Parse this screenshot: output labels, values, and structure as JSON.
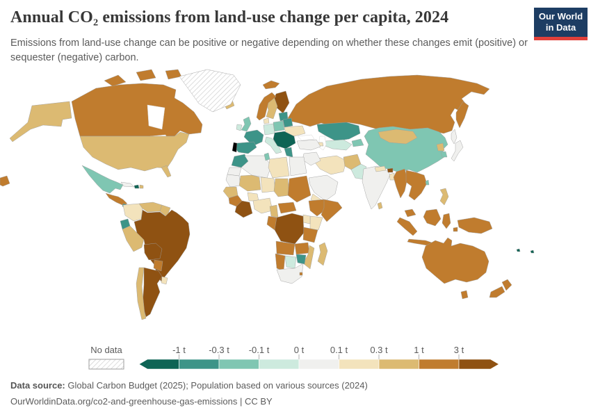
{
  "header": {
    "title": "Annual CO₂ emissions from land-use change per capita, 2024",
    "subtitle": "Emissions from land-use change can be positive or negative depending on whether these changes emit (positive) or sequester (negative) carbon.",
    "logo": {
      "line1": "Our World",
      "line2": "in Data",
      "bg_color": "#1d3d63",
      "accent_color": "#e0403a"
    }
  },
  "chart_data": {
    "type": "choropleth_map",
    "title": "Annual CO₂ emissions from land-use change per capita, 2024",
    "year": 2024,
    "unit": "tonnes of CO₂ per person",
    "legend": {
      "no_data_label": "No data",
      "tick_labels": [
        "-1 t",
        "-0.3 t",
        "-0.1 t",
        "0 t",
        "0.1 t",
        "0.3 t",
        "1 t",
        "3 t"
      ],
      "bin_colors": [
        "#0e6455",
        "#3d9488",
        "#7fc6b2",
        "#cdeade",
        "#f0f0ee",
        "#f3e3bc",
        "#dcba72",
        "#c07c2e",
        "#8f5212"
      ],
      "bins": [
        "less than -1 t",
        "-1 t to -0.3 t",
        "-0.3 t to -0.1 t",
        "-0.1 t to 0 t",
        "0 t to 0.1 t",
        "0.1 t to 0.3 t",
        "0.3 t to 1 t",
        "1 t to 3 t",
        "more than 3 t"
      ],
      "note": "region values below are 1-based indexes into bins/bin_colors; 0 = no data",
      "hatch_color": "#cfcfcf"
    },
    "regions": {
      "greenland": 0,
      "balkans": 1,
      "haiti": 1,
      "georgia": 1,
      "fiji": 1,
      "france": 2,
      "spain": 2,
      "greece": 2,
      "morocco": 2,
      "kazakhstan": 2,
      "belarus": 2,
      "baltics": 2,
      "ecuador": 2,
      "zimbabwe": 2,
      "costa-rica-panama": 2,
      "mexico": 3,
      "china": 3,
      "united-kingdom": 3,
      "poland": 3,
      "tunisia": 3,
      "south-korea": 3,
      "kyrgyzstan-tajikistan": 3,
      "taiwan": 3,
      "ireland": 4,
      "germany": 4,
      "italy": 4,
      "pakistan": 4,
      "uzbekistan-turkmenistan": 4,
      "botswana": 4,
      "india": 5,
      "turkey": 5,
      "japan": 5,
      "saudi-arabia": 5,
      "iraq-syria": 5,
      "algeria": 5,
      "egypt": 5,
      "western-sahara": 5,
      "mauritania": 5,
      "south-africa": 5,
      "cuba": 5,
      "sakhalin": 5,
      "colombia": 6,
      "uruguay": 6,
      "nigeria": 6,
      "niger": 6,
      "burkina-faso": 6,
      "uganda": 6,
      "kenya": 6,
      "iran": 6,
      "nepal": 6,
      "bangladesh": 6,
      "ukraine": 6,
      "libya": 6,
      "denmark": 6,
      "azerbaijan": 6,
      "yemen": 6,
      "united-states": 7,
      "venezuela": 7,
      "guyanas": 7,
      "peru": 7,
      "chile": 7,
      "mongolia": 7,
      "north-korea": 7,
      "afghanistan": 7,
      "sri-lanka": 7,
      "madagascar": 7,
      "mozambique": 7,
      "philippines": 7,
      "sweden": 7,
      "mali": 7,
      "chad": 7,
      "cameroon": 7,
      "senegal": 7,
      "dominican-republic": 7,
      "iceland": 7,
      "canada": 8,
      "russia": 8,
      "norway": 8,
      "sudan": 8,
      "ethiopia": 8,
      "somalia": 8,
      "tanzania": 8,
      "angola": 8,
      "zambia": 8,
      "namibia": 8,
      "guinea": 8,
      "central-african-republic": 8,
      "congo-gabon": 8,
      "myanmar": 8,
      "indochina": 8,
      "malaysia": 8,
      "indonesia": 8,
      "new-guinea": 8,
      "australia": 8,
      "new-zealand": 8,
      "paraguay": 8,
      "central-america": 8,
      "eswatini": 8,
      "brazil": 9,
      "bolivia": 9,
      "argentina": 9,
      "finland": 9,
      "west-africa-coast": 9,
      "drc": 9,
      "bhutan": 9
    }
  },
  "footer": {
    "source_label": "Data source:",
    "source_text": "Global Carbon Budget (2025); Population based on various sources (2024)",
    "license_line": "OurWorldinData.org/co2-and-greenhouse-gas-emissions | CC BY"
  }
}
